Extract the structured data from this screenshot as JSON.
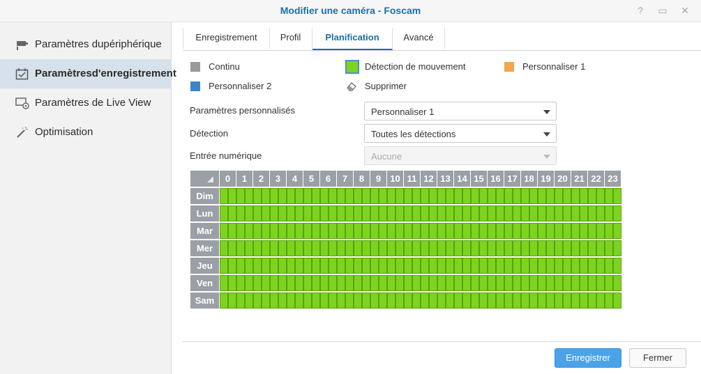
{
  "window": {
    "title": "Modifier une caméra - Foscam",
    "help_glyph": "?",
    "min_glyph": "▭",
    "close_glyph": "✕"
  },
  "sidebar": {
    "items": [
      {
        "label": "Paramètres dupériphérique",
        "icon": "camera-icon"
      },
      {
        "label": "Paramètresd'enregistrement",
        "icon": "calendar-check-icon"
      },
      {
        "label": "Paramètres de Live View",
        "icon": "monitor-icon"
      },
      {
        "label": "Optimisation",
        "icon": "magic-wand-icon"
      }
    ],
    "active_index": 1
  },
  "tabs": [
    {
      "label": "Enregistrement"
    },
    {
      "label": "Profil"
    },
    {
      "label": "Planification"
    },
    {
      "label": "Avancé"
    }
  ],
  "active_tab": 2,
  "legend": [
    {
      "label": "Continu",
      "color": "#9b9b9b"
    },
    {
      "label": "Détection de mouvement",
      "color": "#7ed321"
    },
    {
      "label": "Personnaliser 1",
      "color": "#f5a54a"
    },
    {
      "label": "Personnaliser 2",
      "color": "#3b86c7"
    },
    {
      "label": "Supprimer",
      "icon": "eraser-icon"
    }
  ],
  "form": {
    "custom_params": {
      "label": "Paramètres personnalisés",
      "value": "Personnaliser 1"
    },
    "detection": {
      "label": "Détection",
      "value": "Toutes les détections"
    },
    "digital_input": {
      "label": "Entrée numérique",
      "value": "Aucune",
      "disabled": true
    }
  },
  "schedule": {
    "hours": [
      "0",
      "1",
      "2",
      "3",
      "4",
      "5",
      "6",
      "7",
      "8",
      "9",
      "10",
      "11",
      "12",
      "13",
      "14",
      "15",
      "16",
      "17",
      "18",
      "19",
      "20",
      "21",
      "22",
      "23"
    ],
    "days": [
      "Dim",
      "Lun",
      "Mar",
      "Mer",
      "Jeu",
      "Ven",
      "Sam"
    ],
    "fill_mode": "Détection de mouvement",
    "fill_color": "#7ed321"
  },
  "footer": {
    "save_label": "Enregistrer",
    "close_label": "Fermer"
  }
}
